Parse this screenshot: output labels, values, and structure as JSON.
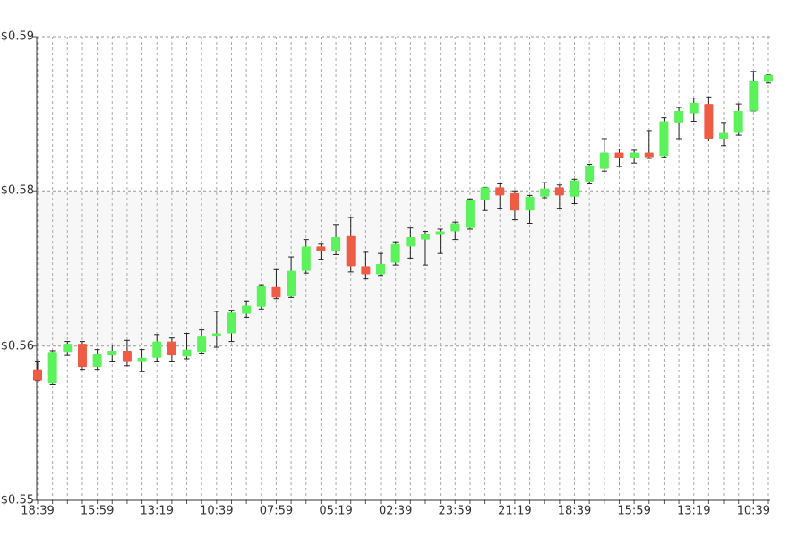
{
  "chart_data": {
    "type": "candlestick",
    "categories": [
      "18:39",
      null,
      null,
      null,
      "15:59",
      null,
      null,
      null,
      "13:19",
      null,
      null,
      null,
      "10:39",
      null,
      null,
      null,
      "07:59",
      null,
      null,
      null,
      "05:19",
      null,
      null,
      null,
      "02:39",
      null,
      null,
      null,
      "23:59",
      null,
      null,
      null,
      "21:19",
      null,
      null,
      null,
      "18:39",
      null,
      null,
      null,
      "15:59",
      null,
      null,
      null,
      "13:19",
      null,
      null,
      null,
      "10:39",
      null
    ],
    "open": [
      0.5613,
      0.5601,
      0.5628,
      0.5635,
      0.5615,
      0.5625,
      0.5629,
      0.562,
      0.5623,
      0.5637,
      0.5624,
      0.5628,
      0.5642,
      0.5644,
      0.5661,
      0.5667,
      0.5684,
      0.5676,
      0.5698,
      0.5719,
      0.5715,
      0.5728,
      0.5702,
      0.5695,
      0.5705,
      0.5719,
      0.5725,
      0.5729,
      0.5732,
      0.5735,
      0.5759,
      0.577,
      0.5765,
      0.575,
      0.5762,
      0.577,
      0.5762,
      0.5775,
      0.5786,
      0.58,
      0.5795,
      0.58,
      0.5797,
      0.5826,
      0.5834,
      0.5842,
      0.5812,
      0.5817,
      0.5836,
      0.5861
    ],
    "high": [
      0.562,
      0.5629,
      0.5637,
      0.5637,
      0.563,
      0.5634,
      0.5638,
      0.563,
      0.5643,
      0.564,
      0.5644,
      0.5647,
      0.5663,
      0.5664,
      0.5672,
      0.5686,
      0.5699,
      0.571,
      0.5725,
      0.5721,
      0.5738,
      0.5744,
      0.5714,
      0.5713,
      0.5723,
      0.5735,
      0.5732,
      0.5734,
      0.574,
      0.576,
      0.577,
      0.5773,
      0.5767,
      0.5763,
      0.5774,
      0.5772,
      0.5777,
      0.579,
      0.5812,
      0.5803,
      0.5802,
      0.5819,
      0.583,
      0.5839,
      0.5847,
      0.5848,
      0.5826,
      0.5842,
      0.587,
      0.5867
    ],
    "low": [
      0.5603,
      0.56,
      0.5625,
      0.5613,
      0.5613,
      0.562,
      0.5616,
      0.5611,
      0.562,
      0.562,
      0.5622,
      0.5627,
      0.5632,
      0.5637,
      0.5658,
      0.5665,
      0.5674,
      0.5675,
      0.5696,
      0.5708,
      0.5712,
      0.5697,
      0.5691,
      0.5694,
      0.5703,
      0.5709,
      0.5703,
      0.5713,
      0.5725,
      0.5734,
      0.575,
      0.5752,
      0.5742,
      0.5739,
      0.5761,
      0.5752,
      0.5756,
      0.5773,
      0.5784,
      0.5788,
      0.5791,
      0.5795,
      0.5796,
      0.5812,
      0.5827,
      0.581,
      0.5806,
      0.5815,
      0.5836,
      0.586
    ],
    "close": [
      0.5603,
      0.5628,
      0.5635,
      0.5615,
      0.5626,
      0.5629,
      0.562,
      0.5623,
      0.5637,
      0.5625,
      0.563,
      0.5642,
      0.5644,
      0.5662,
      0.5668,
      0.5685,
      0.5675,
      0.5698,
      0.5719,
      0.5715,
      0.5727,
      0.5702,
      0.5695,
      0.5704,
      0.5721,
      0.5727,
      0.573,
      0.5732,
      0.5739,
      0.5759,
      0.577,
      0.5763,
      0.575,
      0.5762,
      0.5769,
      0.5763,
      0.5776,
      0.5789,
      0.58,
      0.5795,
      0.58,
      0.5796,
      0.5827,
      0.5836,
      0.5843,
      0.5812,
      0.5817,
      0.5836,
      0.5862,
      0.5867
    ],
    "up_color": "#5cf25c",
    "down_color": "#ef5b45",
    "ylim": [
      0.55,
      0.59
    ],
    "yticks": [
      {
        "value": 0.55,
        "label": "$0.55"
      },
      {
        "value": 0.5633,
        "label": "$0.56"
      },
      {
        "value": 0.5767,
        "label": "$0.58"
      },
      {
        "value": 0.59,
        "label": "$0.59"
      }
    ],
    "grid": true
  }
}
